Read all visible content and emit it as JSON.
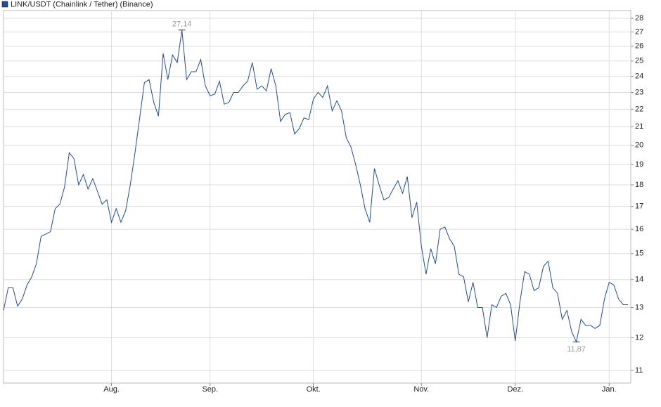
{
  "chart_data": {
    "type": "line",
    "series": [
      {
        "name": "LINK/USDT (Chainlink / Tether) (Binance)",
        "color": "#1f4e99",
        "values": [
          12.9,
          13.7,
          13.7,
          13.05,
          13.3,
          13.8,
          14.1,
          14.6,
          15.7,
          15.8,
          15.9,
          16.9,
          17.1,
          17.9,
          19.6,
          19.3,
          18.0,
          18.5,
          17.8,
          18.3,
          17.7,
          17.1,
          17.3,
          16.3,
          16.9,
          16.3,
          16.8,
          18.0,
          19.6,
          21.5,
          23.6,
          23.8,
          22.4,
          21.6,
          25.5,
          23.8,
          25.4,
          24.9,
          27.14,
          23.8,
          24.3,
          24.3,
          25.1,
          23.4,
          22.8,
          22.9,
          23.7,
          22.3,
          22.4,
          23.0,
          23.0,
          23.4,
          23.7,
          24.9,
          23.2,
          23.4,
          23.1,
          24.5,
          23.4,
          21.3,
          21.7,
          21.8,
          20.6,
          20.9,
          21.5,
          21.4,
          22.6,
          23.0,
          22.7,
          23.4,
          21.9,
          22.5,
          21.9,
          20.4,
          19.9,
          19.0,
          18.0,
          16.9,
          16.3,
          18.8,
          18.0,
          17.3,
          17.4,
          17.8,
          18.2,
          17.6,
          18.4,
          16.5,
          17.2,
          15.3,
          14.2,
          15.2,
          14.6,
          16.0,
          16.1,
          15.6,
          15.3,
          14.2,
          14.1,
          13.2,
          13.9,
          13.0,
          13.0,
          12.0,
          13.1,
          13.0,
          13.4,
          13.5,
          13.1,
          11.9,
          13.2,
          14.3,
          14.2,
          13.6,
          13.7,
          14.5,
          14.7,
          13.7,
          13.5,
          12.6,
          12.9,
          12.2,
          11.87,
          12.6,
          12.4,
          12.4,
          12.3,
          12.4,
          13.3,
          13.9,
          13.8,
          13.3,
          13.1,
          13.1
        ],
        "value_labels": [
          null,
          null,
          null,
          null,
          null,
          null,
          null,
          null,
          null,
          null,
          null,
          null,
          null,
          null,
          null,
          null,
          null,
          null,
          null,
          null,
          null,
          null,
          null,
          null,
          null,
          null,
          null,
          null,
          null,
          null,
          null,
          null,
          null,
          null,
          null,
          null,
          null,
          null,
          "27,14",
          null,
          null,
          null,
          null,
          null,
          null,
          null,
          null,
          null,
          null,
          null,
          null,
          null,
          null,
          null,
          null,
          null,
          null,
          null,
          null,
          null,
          null,
          null,
          null,
          null,
          null,
          null,
          null,
          null,
          null,
          null,
          null,
          null,
          null,
          null,
          null,
          null,
          null,
          null,
          null,
          null,
          null,
          null,
          null,
          null,
          null,
          null,
          null,
          null,
          null,
          null,
          null,
          null,
          null,
          null,
          null,
          null,
          null,
          null,
          null,
          null,
          null,
          null,
          null,
          null,
          null,
          null,
          null,
          null,
          null,
          null,
          null,
          null,
          null,
          null,
          null,
          null,
          null,
          null,
          null,
          null,
          null,
          null,
          "11,87",
          null,
          null,
          null,
          null,
          null,
          null,
          null,
          null,
          null,
          null,
          null
        ]
      }
    ],
    "categories": [
      null,
      null,
      null,
      null,
      null,
      null,
      null,
      null,
      null,
      null,
      null,
      null,
      null,
      null,
      null,
      null,
      null,
      null,
      null,
      null,
      null,
      null,
      null,
      "Aug.",
      null,
      null,
      null,
      null,
      null,
      null,
      null,
      null,
      null,
      null,
      null,
      null,
      null,
      null,
      null,
      null,
      null,
      null,
      null,
      null,
      "Sep.",
      null,
      null,
      null,
      null,
      null,
      null,
      null,
      null,
      null,
      null,
      null,
      null,
      null,
      null,
      null,
      null,
      null,
      null,
      null,
      null,
      null,
      "Okt.",
      null,
      null,
      null,
      null,
      null,
      null,
      null,
      null,
      null,
      null,
      null,
      null,
      null,
      null,
      null,
      null,
      null,
      null,
      null,
      null,
      null,
      null,
      "Nov.",
      null,
      null,
      null,
      null,
      null,
      null,
      null,
      null,
      null,
      null,
      null,
      null,
      null,
      null,
      null,
      null,
      null,
      null,
      null,
      "Dez.",
      null,
      null,
      null,
      null,
      null,
      null,
      null,
      null,
      null,
      null,
      null,
      null,
      null,
      null,
      null,
      null,
      null,
      null,
      null,
      "Jan.",
      null,
      null,
      null,
      null
    ],
    "ylim": [
      10.64,
      28.58
    ],
    "yticks": [
      11,
      12,
      13,
      14,
      15,
      16,
      17,
      18,
      19,
      20,
      21,
      22,
      23,
      24,
      25,
      26,
      27,
      28
    ],
    "log_scale": true,
    "grid": true
  }
}
